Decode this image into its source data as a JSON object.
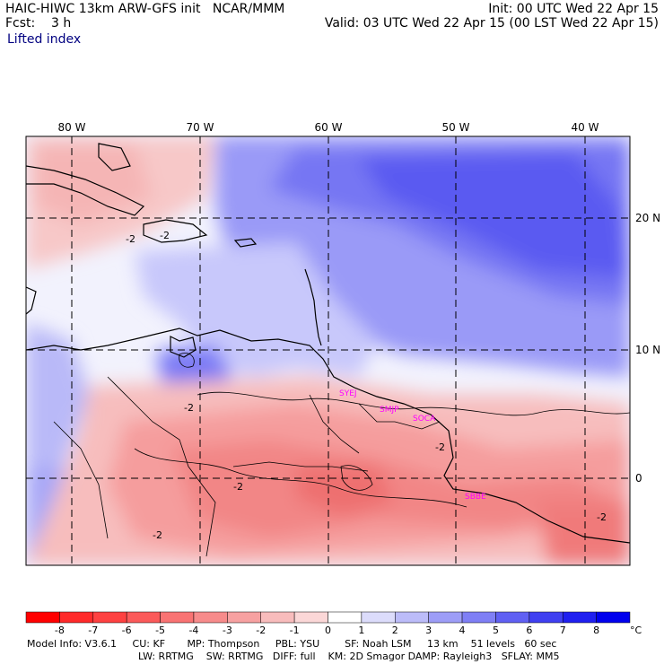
{
  "header": {
    "line1_left": "HAIC-HIWC 13km ARW-GFS init   NCAR/MMM",
    "line2_left": "Fcst:    3 h",
    "line1_right": "Init: 00 UTC Wed 22 Apr 15",
    "line2_right": "Valid: 03 UTC Wed 22 Apr 15 (00 LST Wed 22 Apr 15)",
    "field": "Lifted index"
  },
  "map": {
    "lon_labels": [
      "80 W",
      "70 W",
      "60 W",
      "50 W",
      "40 W"
    ],
    "lat_labels": [
      "20 N",
      "10 N",
      "0"
    ],
    "contour_label": "-2",
    "station_labels": [
      "SYEJ",
      "SMJP",
      "SOCA",
      "SBBE"
    ],
    "station_color": "#ff00ff",
    "gridline_style": "dashed"
  },
  "colorbar": {
    "ticks": [
      "-8",
      "-7",
      "-6",
      "-5",
      "-4",
      "-3",
      "-2",
      "-1",
      "0",
      "1",
      "2",
      "3",
      "4",
      "5",
      "6",
      "7",
      "8"
    ],
    "unit": "°C",
    "colors": [
      "#ff0000",
      "#ff2a2a",
      "#fe4141",
      "#fb5a5a",
      "#f97373",
      "#f78b8b",
      "#f7a1a1",
      "#f8bcbc",
      "#fbd7d7",
      "#ffffff",
      "#dcdcfb",
      "#bcbcf9",
      "#9d9df7",
      "#7f7ff5",
      "#6060f3",
      "#4040f1",
      "#2020f0",
      "#0000ee"
    ]
  },
  "footer": {
    "line1": "Model Info: V3.6.1     CU: KF       MP: Thompson     PBL: YSU        SF: Noah LSM     13 km    51 levels   60 sec",
    "line2": "LW: RRTMG    SW: RRTMG   DIFF: full    KM: 2D Smagor DAMP: Rayleigh3   SFLAY: MM5"
  }
}
